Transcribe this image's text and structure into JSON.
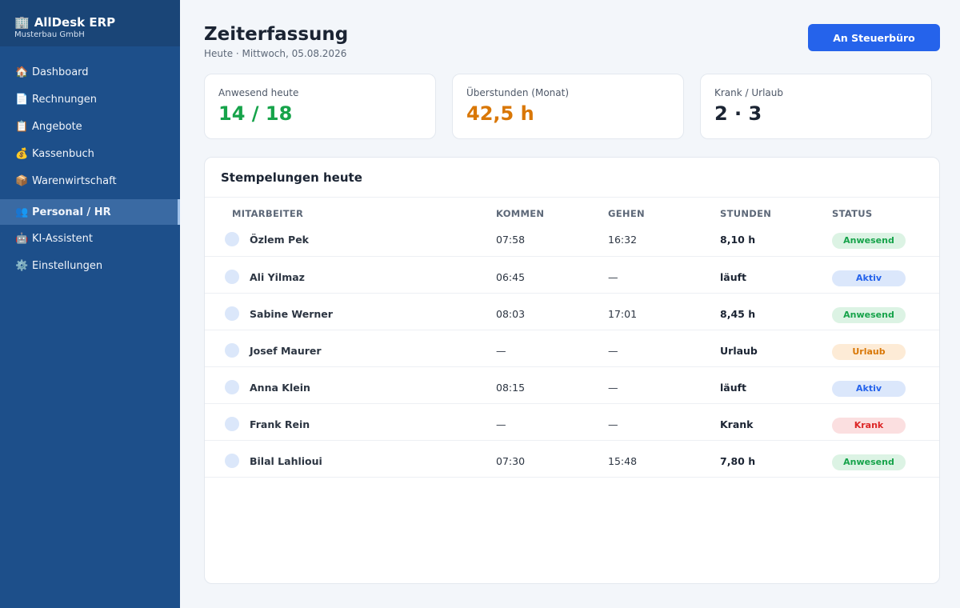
{
  "sidebar": {
    "brand_icon": "🏢",
    "brand_title": "AllDesk ERP",
    "brand_sub": "Musterbau GmbH",
    "items": [
      {
        "icon": "🏠",
        "icon_name": "home-icon",
        "label": "Dashboard",
        "active": false
      },
      {
        "icon": "📄",
        "icon_name": "document-icon",
        "label": "Rechnungen",
        "active": false
      },
      {
        "icon": "📋",
        "icon_name": "clipboard-icon",
        "label": "Angebote",
        "active": false
      },
      {
        "icon": "💰",
        "icon_name": "money-bag-icon",
        "label": "Kassenbuch",
        "active": false
      },
      {
        "icon": "📦",
        "icon_name": "package-icon",
        "label": "Warenwirtschaft",
        "active": false
      },
      {
        "icon": "👥",
        "icon_name": "people-icon",
        "label": "Personal / HR",
        "active": true
      },
      {
        "icon": "🤖",
        "icon_name": "robot-icon",
        "label": "KI-Assistent",
        "active": false
      },
      {
        "icon": "⚙️",
        "icon_name": "gear-icon",
        "label": "Einstellungen",
        "active": false
      }
    ]
  },
  "header": {
    "title": "Zeiterfassung",
    "subtitle": "Heute · Mittwoch, 05.08.2026",
    "action_label": "An Steuerbüro"
  },
  "kpis": [
    {
      "label": "Anwesend heute",
      "value": "14 / 18",
      "color": "#16a34a"
    },
    {
      "label": "Überstunden (Monat)",
      "value": "42,5 h",
      "color": "#d97706"
    },
    {
      "label": "Krank / Urlaub",
      "value": "2 · 3",
      "color": "#1b2433"
    }
  ],
  "table": {
    "title": "Stempelungen heute",
    "columns": [
      "MITARBEITER",
      "KOMMEN",
      "GEHEN",
      "STUNDEN",
      "STATUS"
    ],
    "rows": [
      {
        "name": "Özlem Pek",
        "kommen": "07:58",
        "gehen": "16:32",
        "stunden": "8,10 h",
        "status": "Anwesend",
        "kind": "present"
      },
      {
        "name": "Ali Yilmaz",
        "kommen": "06:45",
        "gehen": "—",
        "stunden": "läuft",
        "status": "Aktiv",
        "kind": "active"
      },
      {
        "name": "Sabine Werner",
        "kommen": "08:03",
        "gehen": "17:01",
        "stunden": "8,45 h",
        "status": "Anwesend",
        "kind": "present"
      },
      {
        "name": "Josef Maurer",
        "kommen": "—",
        "gehen": "—",
        "stunden": "Urlaub",
        "status": "Urlaub",
        "kind": "vacation"
      },
      {
        "name": "Anna Klein",
        "kommen": "08:15",
        "gehen": "—",
        "stunden": "läuft",
        "status": "Aktiv",
        "kind": "active"
      },
      {
        "name": "Frank Rein",
        "kommen": "—",
        "gehen": "—",
        "stunden": "Krank",
        "status": "Krank",
        "kind": "sick"
      },
      {
        "name": "Bilal Lahlioui",
        "kommen": "07:30",
        "gehen": "15:48",
        "stunden": "7,80 h",
        "status": "Anwesend",
        "kind": "present"
      }
    ]
  },
  "status_colors": {
    "present": {
      "bg": "#dcf3e4",
      "fg": "#16a34a"
    },
    "active": {
      "bg": "#dbe7fb",
      "fg": "#2563eb"
    },
    "vacation": {
      "bg": "#fdebd6",
      "fg": "#d97706"
    },
    "sick": {
      "bg": "#fbdfe0",
      "fg": "#dc2626"
    }
  }
}
